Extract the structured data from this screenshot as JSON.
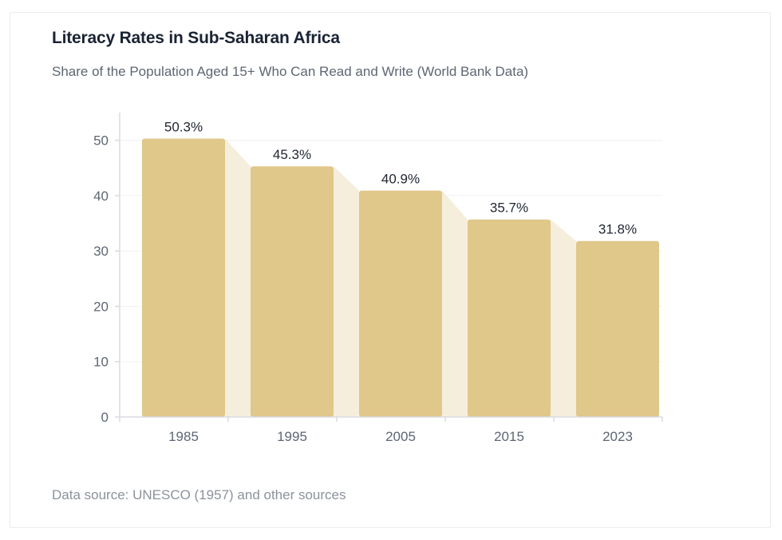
{
  "title": "Literacy Rates in Sub-Saharan Africa",
  "subtitle": "Share of the Population Aged 15+ Who Can Read and Write (World Bank Data)",
  "source": "Data source: UNESCO (1957) and other sources",
  "colors": {
    "bar": "#e0c78a",
    "connector": "#f6eedd",
    "grid": "#f0f1f3",
    "axis": "#d8dbe0"
  },
  "chart_data": {
    "type": "bar",
    "title": "Literacy Rates in Sub-Saharan Africa",
    "xlabel": "",
    "ylabel": "",
    "categories": [
      "1985",
      "1995",
      "2005",
      "2015",
      "2023"
    ],
    "values": [
      50.3,
      45.3,
      40.9,
      35.7,
      31.8
    ],
    "data_labels": [
      "50.3%",
      "45.3%",
      "40.9%",
      "35.7%",
      "31.8%"
    ],
    "yticks": [
      0,
      10,
      20,
      30,
      40,
      50
    ],
    "ylim": [
      0,
      55
    ],
    "grid": true
  }
}
